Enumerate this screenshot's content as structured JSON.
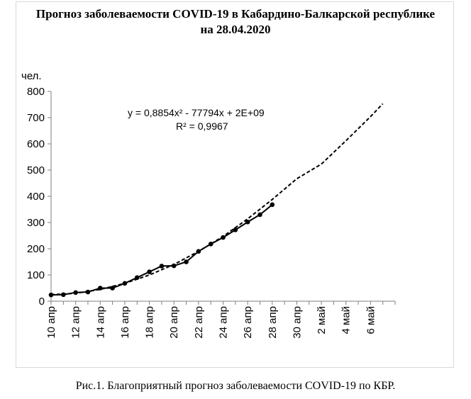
{
  "chart_data": {
    "type": "line",
    "title": "Прогноз заболеваемости COVID-19 в Кабардино-Балкарской республике",
    "subtitle": "на 28.04.2020",
    "ylabel": "чел.",
    "xlabel": "",
    "ylim": [
      0,
      800
    ],
    "yticks": [
      "0",
      "100",
      "200",
      "300",
      "400",
      "500",
      "600",
      "700",
      "800"
    ],
    "xtick_labels": [
      "10 апр",
      "12 апр",
      "14 апр",
      "16 апр",
      "18 апр",
      "20 апр",
      "22 апр",
      "24 апр",
      "26 апр",
      "28 апр",
      "30 апр",
      "2 май",
      "4 май",
      "6 май"
    ],
    "grid": false,
    "series": [
      {
        "kind": "observed",
        "x": [
          0,
          1,
          2,
          3,
          4,
          5,
          6,
          7,
          8,
          9,
          10,
          11,
          12,
          13,
          14,
          15,
          16,
          17,
          18
        ],
        "values": [
          24,
          25,
          33,
          35,
          50,
          50,
          68,
          90,
          112,
          134,
          135,
          150,
          190,
          218,
          243,
          272,
          302,
          330,
          368
        ]
      },
      {
        "kind": "trend",
        "x": [
          0,
          2,
          4,
          6,
          8,
          10,
          12,
          14,
          16,
          18,
          20,
          22,
          24,
          26,
          27
        ],
        "values": [
          25,
          30,
          45,
          68,
          100,
          140,
          190,
          247,
          314,
          388,
          467,
          523,
          612,
          704,
          753
        ]
      }
    ],
    "trendline_equation": "y = 0,8854x² - 77794x + 2E+09",
    "r_squared": "R² = 0,9967",
    "colors": {
      "line": "#000000",
      "axis": "#7f7f7f"
    }
  },
  "caption": "Рис.1. Благоприятный прогноз заболеваемости COVID-19 по КБР."
}
